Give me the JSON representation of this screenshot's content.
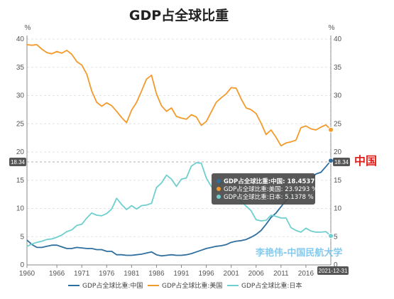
{
  "page_title": "GDP占全球比重",
  "y_unit_left": "%",
  "y_unit_right": "%",
  "watermark": "李艳伟-中国民航大学",
  "china_label": "中国",
  "colors": {
    "china": "#2f6f9e",
    "usa": "#f39a2b",
    "japan": "#6fcfcf",
    "tooltip_bg": "#555555"
  },
  "tooltip": {
    "rows": [
      {
        "text": "GDP占全球比重:中国: 18.4537  %",
        "series": "china"
      },
      {
        "text": "GDP占全球比重:美国: 23.9293  %",
        "series": "usa"
      },
      {
        "text": "GDP占全球比重:日本: 5.1378  %",
        "series": "japan"
      }
    ]
  },
  "axis_pointer": {
    "y_label": "18.34",
    "y_label_right": "18.34",
    "x_label": "2021-12-31"
  },
  "chart_data": {
    "type": "line",
    "title": "GDP占全球比重",
    "ylabel": "%",
    "ylim": [
      0,
      40
    ],
    "xlim": [
      1960,
      2021
    ],
    "y_ticks": [
      0,
      5,
      10,
      15,
      20,
      25,
      30,
      35,
      40
    ],
    "x_ticks": [
      1960,
      1966,
      1971,
      1976,
      1981,
      1986,
      1991,
      1996,
      2001,
      2006,
      2011,
      2016
    ],
    "grid": true,
    "legend_position": "bottom",
    "x": [
      1960,
      1961,
      1962,
      1963,
      1964,
      1965,
      1966,
      1967,
      1968,
      1969,
      1970,
      1971,
      1972,
      1973,
      1974,
      1975,
      1976,
      1977,
      1978,
      1979,
      1980,
      1981,
      1982,
      1983,
      1984,
      1985,
      1986,
      1987,
      1988,
      1989,
      1990,
      1991,
      1992,
      1993,
      1994,
      1995,
      1996,
      1997,
      1998,
      1999,
      2000,
      2001,
      2002,
      2003,
      2004,
      2005,
      2006,
      2007,
      2008,
      2009,
      2010,
      2011,
      2012,
      2013,
      2014,
      2015,
      2016,
      2017,
      2018,
      2019,
      2020,
      2021
    ],
    "series": [
      {
        "name": "GDP占全球比重:中国",
        "color_key": "china",
        "values": [
          4.4,
          3.6,
          3.1,
          3.1,
          3.3,
          3.5,
          3.5,
          3.2,
          2.9,
          2.9,
          3.1,
          3.0,
          2.9,
          2.9,
          2.7,
          2.7,
          2.4,
          2.4,
          1.8,
          1.8,
          1.7,
          1.7,
          1.8,
          1.9,
          2.1,
          2.3,
          1.8,
          1.6,
          1.7,
          1.8,
          1.7,
          1.7,
          1.8,
          2.0,
          2.3,
          2.6,
          2.9,
          3.1,
          3.3,
          3.4,
          3.6,
          4.0,
          4.2,
          4.3,
          4.5,
          4.9,
          5.4,
          6.1,
          7.2,
          8.4,
          9.2,
          10.3,
          11.4,
          12.4,
          13.2,
          14.7,
          14.7,
          15.2,
          16.1,
          16.4,
          17.4,
          18.4537
        ]
      },
      {
        "name": "GDP占全球比重:美国",
        "color_key": "usa",
        "values": [
          39.0,
          38.9,
          39.0,
          38.2,
          37.6,
          37.4,
          37.8,
          37.5,
          38.0,
          37.3,
          36.0,
          35.4,
          33.8,
          30.8,
          28.8,
          28.1,
          28.7,
          28.2,
          27.2,
          26.1,
          25.2,
          27.4,
          28.8,
          30.8,
          32.9,
          33.6,
          30.3,
          28.2,
          27.2,
          27.8,
          26.3,
          26.0,
          25.8,
          26.6,
          26.2,
          24.7,
          25.4,
          27.1,
          28.8,
          29.6,
          30.3,
          31.4,
          31.3,
          29.4,
          27.8,
          27.5,
          26.8,
          25.1,
          23.1,
          23.9,
          22.6,
          21.1,
          21.6,
          21.8,
          22.1,
          24.3,
          24.6,
          24.1,
          23.9,
          24.4,
          24.8,
          23.9293
        ]
      },
      {
        "name": "GDP占全球比重:日本",
        "color_key": "japan",
        "values": [
          3.3,
          3.7,
          4.0,
          4.2,
          4.5,
          4.6,
          4.9,
          5.3,
          5.9,
          6.2,
          7.0,
          7.2,
          8.3,
          9.2,
          8.8,
          8.7,
          9.1,
          9.9,
          11.8,
          10.7,
          9.8,
          10.5,
          9.9,
          10.5,
          10.6,
          10.9,
          13.7,
          14.5,
          15.9,
          15.2,
          13.9,
          15.2,
          15.4,
          17.5,
          18.1,
          18.0,
          15.4,
          13.9,
          12.9,
          14.6,
          14.6,
          12.8,
          11.9,
          11.3,
          10.4,
          9.6,
          8.0,
          7.8,
          7.9,
          8.8,
          8.6,
          8.3,
          8.3,
          6.6,
          6.1,
          5.8,
          6.5,
          6.0,
          5.8,
          5.8,
          5.9,
          5.1378
        ]
      }
    ]
  }
}
